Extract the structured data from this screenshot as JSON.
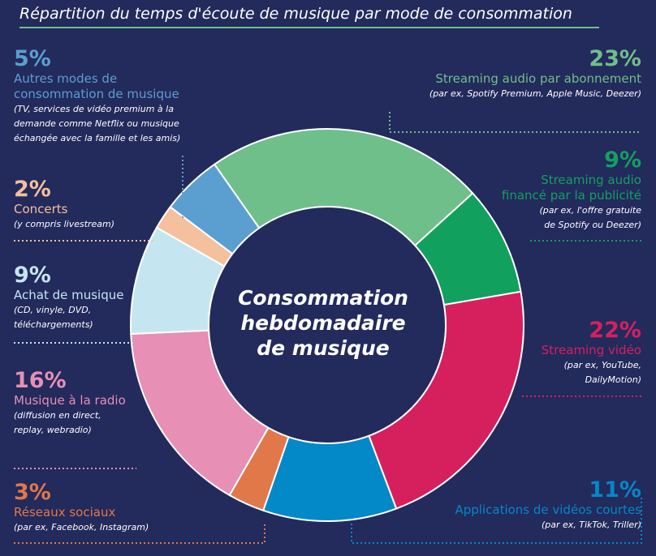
{
  "title": "Répartition du temps d'écoute de musique par mode de consommation",
  "center_label": [
    "Consommation",
    "hebdomadaire",
    "de musique"
  ],
  "chart_data": {
    "type": "pie",
    "title": "Répartition du temps d'écoute de musique par mode de consommation",
    "center_label": "Consommation hebdomadaire de musique",
    "slices": [
      {
        "pct": "23%",
        "value": 23,
        "color": "#6fbf8a",
        "name": "Streaming audio par abonnement",
        "detail": [
          "(par ex, Spotify Premium, Apple Music, Deezer)"
        ]
      },
      {
        "pct": "9%",
        "value": 9,
        "color": "#12a05f",
        "name": [
          "Streaming audio",
          "financé par la publicité"
        ],
        "detail": [
          "(par ex, l'offre gratuite",
          "de Spotify ou Deezer)"
        ]
      },
      {
        "pct": "22%",
        "value": 22,
        "color": "#d6205e",
        "name": "Streaming vidéo",
        "detail": [
          "(par ex, YouTube,",
          "DailyMotion)"
        ]
      },
      {
        "pct": "11%",
        "value": 11,
        "color": "#0388c8",
        "name": "Applications de vidéos courtes",
        "detail": [
          "(par ex, TikTok, Triller)"
        ]
      },
      {
        "pct": "3%",
        "value": 3,
        "color": "#e0784a",
        "name": "Réseaux sociaux",
        "detail": [
          "(par ex, Facebook, Instagram)"
        ]
      },
      {
        "pct": "16%",
        "value": 16,
        "color": "#e78fb5",
        "name": "Musique à la radio",
        "detail": [
          "(diffusion en direct,",
          "replay, webradio)"
        ]
      },
      {
        "pct": "9%",
        "value": 9,
        "color": "#c5e6f1",
        "name": "Achat de musique",
        "detail": [
          "(CD, vinyle, DVD,",
          "téléchargements)"
        ]
      },
      {
        "pct": "2%",
        "value": 2,
        "color": "#f5c09e",
        "name": "Concerts",
        "detail": [
          "(y compris livestream)"
        ]
      },
      {
        "pct": "5%",
        "value": 5,
        "color": "#5b9fd0",
        "name": [
          "Autres modes de",
          "consommation de musique"
        ],
        "detail": [
          "(TV, services de vidéo premium à la",
          "demande comme Netflix ou musique",
          "échangée avec la famille et les amis)"
        ]
      }
    ]
  }
}
